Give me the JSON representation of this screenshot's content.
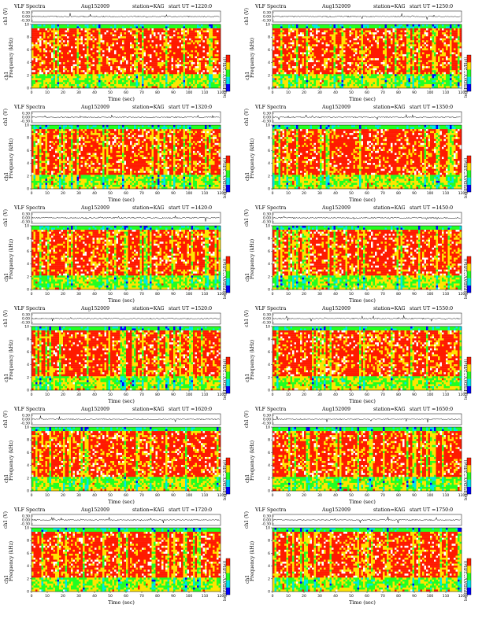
{
  "panel_text": {
    "title": "VLF Spectra",
    "date": "Aug152009",
    "station": "station=KAG",
    "start_label": "start",
    "ut_label": "UT",
    "top_ylabel": "ch1 (V)",
    "spec_ylabel_channel": "ch1",
    "spec_ylabel": "Frequency (kHz)",
    "xlabel": "Time (sec)",
    "colorbar_label": "log(PSD/(V^2/Hz))"
  },
  "colors": {
    "background": "#ffffff",
    "spectrogram_red": "#ff1a00",
    "spectrogram_yellow": "#ffe400",
    "spectrogram_green": "#22ff22",
    "spectrogram_cyan": "#00e6e6",
    "spectrogram_blue": "#0000ff",
    "trace": "#000000"
  },
  "chart_data": [
    {
      "type": "heatmap",
      "start_ut": "=1220:0",
      "title": "VLF Spectra",
      "date": "Aug152009",
      "station": "station=KAG",
      "xlabel": "Time (sec)",
      "ylabel": "Frequency (kHz)",
      "xlim": [
        0,
        120
      ],
      "ylim": [
        0,
        10
      ],
      "xticks": [
        0,
        10,
        20,
        30,
        40,
        50,
        60,
        70,
        80,
        90,
        100,
        110,
        120
      ],
      "yticks": [
        0,
        2,
        4,
        6,
        8,
        10
      ],
      "top_trace": {
        "ylabel": "ch1 (V)",
        "yticks": [
          "0.30",
          "0.00",
          "-0.30"
        ],
        "ylim": [
          -0.3,
          0.3
        ]
      },
      "colorbar": {
        "label": "log(PSD/(V^2/Hz))",
        "colors": [
          "#0000ff",
          "#00e6e6",
          "#22ff22",
          "#ffe400",
          "#ff1a00"
        ]
      },
      "seed": 11
    },
    {
      "type": "heatmap",
      "start_ut": "=1250:0",
      "title": "VLF Spectra",
      "date": "Aug152009",
      "station": "station=KAG",
      "xlabel": "Time (sec)",
      "ylabel": "Frequency (kHz)",
      "xlim": [
        0,
        120
      ],
      "ylim": [
        0,
        10
      ],
      "xticks": [
        0,
        10,
        20,
        30,
        40,
        50,
        60,
        70,
        80,
        90,
        100,
        110,
        120
      ],
      "yticks": [
        0,
        2,
        4,
        6,
        8,
        10
      ],
      "top_trace": {
        "ylabel": "ch1 (V)",
        "yticks": [
          "0.30",
          "0.00",
          "-0.30"
        ],
        "ylim": [
          -0.3,
          0.3
        ]
      },
      "colorbar": {
        "label": "log(PSD/(V^2/Hz))",
        "colors": [
          "#0000ff",
          "#00e6e6",
          "#22ff22",
          "#ffe400",
          "#ff1a00"
        ]
      },
      "seed": 23
    },
    {
      "type": "heatmap",
      "start_ut": "=1320:0",
      "title": "VLF Spectra",
      "date": "Aug152009",
      "station": "station=KAG",
      "xlabel": "Time (sec)",
      "ylabel": "Frequency (kHz)",
      "xlim": [
        0,
        120
      ],
      "ylim": [
        0,
        10
      ],
      "xticks": [
        0,
        10,
        20,
        30,
        40,
        50,
        60,
        70,
        80,
        90,
        100,
        110,
        120
      ],
      "yticks": [
        0,
        2,
        4,
        6,
        8,
        10
      ],
      "top_trace": {
        "ylabel": "ch1 (V)",
        "yticks": [
          "0.30",
          "0.00",
          "-0.30"
        ],
        "ylim": [
          -0.3,
          0.3
        ]
      },
      "colorbar": {
        "label": "log(PSD/(V^2/Hz))",
        "colors": [
          "#0000ff",
          "#00e6e6",
          "#22ff22",
          "#ffe400",
          "#ff1a00"
        ]
      },
      "seed": 37
    },
    {
      "type": "heatmap",
      "start_ut": "=1350:0",
      "title": "VLF Spectra",
      "date": "Aug152009",
      "station": "station=KAG",
      "xlabel": "Time (sec)",
      "ylabel": "Frequency (kHz)",
      "xlim": [
        0,
        120
      ],
      "ylim": [
        0,
        10
      ],
      "xticks": [
        0,
        10,
        20,
        30,
        40,
        50,
        60,
        70,
        80,
        90,
        100,
        110,
        120
      ],
      "yticks": [
        0,
        2,
        4,
        6,
        8,
        10
      ],
      "top_trace": {
        "ylabel": "ch1 (V)",
        "yticks": [
          "0.30",
          "0.00",
          "-0.30"
        ],
        "ylim": [
          -0.3,
          0.3
        ]
      },
      "colorbar": {
        "label": "log(PSD/(V^2/Hz))",
        "colors": [
          "#0000ff",
          "#00e6e6",
          "#22ff22",
          "#ffe400",
          "#ff1a00"
        ]
      },
      "seed": 41
    },
    {
      "type": "heatmap",
      "start_ut": "=1420:0",
      "title": "VLF Spectra",
      "date": "Aug152009",
      "station": "station=KAG",
      "xlabel": "Time (sec)",
      "ylabel": "Frequency (kHz)",
      "xlim": [
        0,
        120
      ],
      "ylim": [
        0,
        10
      ],
      "xticks": [
        0,
        10,
        20,
        30,
        40,
        50,
        60,
        70,
        80,
        90,
        100,
        110,
        120
      ],
      "yticks": [
        0,
        2,
        4,
        6,
        8,
        10
      ],
      "top_trace": {
        "ylabel": "ch1 (V)",
        "yticks": [
          "0.30",
          "0.00",
          "-0.30"
        ],
        "ylim": [
          -0.3,
          0.3
        ]
      },
      "colorbar": {
        "label": "log(PSD/(V^2/Hz))",
        "colors": [
          "#0000ff",
          "#00e6e6",
          "#22ff22",
          "#ffe400",
          "#ff1a00"
        ]
      },
      "seed": 53
    },
    {
      "type": "heatmap",
      "start_ut": "=1450:0",
      "title": "VLF Spectra",
      "date": "Aug152009",
      "station": "station=KAG",
      "xlabel": "Time (sec)",
      "ylabel": "Frequency (kHz)",
      "xlim": [
        0,
        120
      ],
      "ylim": [
        0,
        10
      ],
      "xticks": [
        0,
        10,
        20,
        30,
        40,
        50,
        60,
        70,
        80,
        90,
        100,
        110,
        120
      ],
      "yticks": [
        0,
        2,
        4,
        6,
        8,
        10
      ],
      "top_trace": {
        "ylabel": "ch1 (V)",
        "yticks": [
          "0.30",
          "0.00",
          "-0.30"
        ],
        "ylim": [
          -0.3,
          0.3
        ]
      },
      "colorbar": {
        "label": "log(PSD/(V^2/Hz))",
        "colors": [
          "#0000ff",
          "#00e6e6",
          "#22ff22",
          "#ffe400",
          "#ff1a00"
        ]
      },
      "seed": 67
    },
    {
      "type": "heatmap",
      "start_ut": "=1520:0",
      "title": "VLF Spectra",
      "date": "Aug152009",
      "station": "station=KAG",
      "xlabel": "Time (sec)",
      "ylabel": "Frequency (kHz)",
      "xlim": [
        0,
        120
      ],
      "ylim": [
        0,
        10
      ],
      "xticks": [
        0,
        10,
        20,
        30,
        40,
        50,
        60,
        70,
        80,
        90,
        100,
        110,
        120
      ],
      "yticks": [
        0,
        2,
        4,
        6,
        8,
        10
      ],
      "top_trace": {
        "ylabel": "ch1 (V)",
        "yticks": [
          "0.30",
          "0.00",
          "-0.30"
        ],
        "ylim": [
          -0.3,
          0.3
        ]
      },
      "colorbar": {
        "label": "log(PSD/(V^2/Hz))",
        "colors": [
          "#0000ff",
          "#00e6e6",
          "#22ff22",
          "#ffe400",
          "#ff1a00"
        ]
      },
      "seed": 71
    },
    {
      "type": "heatmap",
      "start_ut": "=1550:0",
      "title": "VLF Spectra",
      "date": "Aug152009",
      "station": "station=KAG",
      "xlabel": "Time (sec)",
      "ylabel": "Frequency (kHz)",
      "xlim": [
        0,
        120
      ],
      "ylim": [
        0,
        10
      ],
      "xticks": [
        0,
        10,
        20,
        30,
        40,
        50,
        60,
        70,
        80,
        90,
        100,
        110,
        120
      ],
      "yticks": [
        0,
        2,
        4,
        6,
        8,
        10
      ],
      "top_trace": {
        "ylabel": "ch1 (V)",
        "yticks": [
          "0.30",
          "0.00",
          "-0.30"
        ],
        "ylim": [
          -0.3,
          0.3
        ]
      },
      "colorbar": {
        "label": "log(PSD/(V^2/Hz))",
        "colors": [
          "#0000ff",
          "#00e6e6",
          "#22ff22",
          "#ffe400",
          "#ff1a00"
        ]
      },
      "seed": 83
    },
    {
      "type": "heatmap",
      "start_ut": "=1620:0",
      "title": "VLF Spectra",
      "date": "Aug152009",
      "station": "station=KAG",
      "xlabel": "Time (sec)",
      "ylabel": "Frequency (kHz)",
      "xlim": [
        0,
        120
      ],
      "ylim": [
        0,
        10
      ],
      "xticks": [
        0,
        10,
        20,
        30,
        40,
        50,
        60,
        70,
        80,
        90,
        100,
        110,
        120
      ],
      "yticks": [
        0,
        2,
        4,
        6,
        8,
        10
      ],
      "top_trace": {
        "ylabel": "ch1 (V)",
        "yticks": [
          "0.30",
          "0.00",
          "-0.30"
        ],
        "ylim": [
          -0.3,
          0.3
        ]
      },
      "colorbar": {
        "label": "log(PSD/(V^2/Hz))",
        "colors": [
          "#0000ff",
          "#00e6e6",
          "#22ff22",
          "#ffe400",
          "#ff1a00"
        ]
      },
      "seed": 97
    },
    {
      "type": "heatmap",
      "start_ut": "=1650:0",
      "title": "VLF Spectra",
      "date": "Aug152009",
      "station": "station=KAG",
      "xlabel": "Time (sec)",
      "ylabel": "Frequency (kHz)",
      "xlim": [
        0,
        120
      ],
      "ylim": [
        0,
        10
      ],
      "xticks": [
        0,
        10,
        20,
        30,
        40,
        50,
        60,
        70,
        80,
        90,
        100,
        110,
        120
      ],
      "yticks": [
        0,
        2,
        4,
        6,
        8,
        10
      ],
      "top_trace": {
        "ylabel": "ch1 (V)",
        "yticks": [
          "0.30",
          "0.00",
          "-0.30"
        ],
        "ylim": [
          -0.3,
          0.3
        ]
      },
      "colorbar": {
        "label": "log(PSD/(V^2/Hz))",
        "colors": [
          "#0000ff",
          "#00e6e6",
          "#22ff22",
          "#ffe400",
          "#ff1a00"
        ]
      },
      "seed": 101
    },
    {
      "type": "heatmap",
      "start_ut": "=1720:0",
      "title": "VLF Spectra",
      "date": "Aug152009",
      "station": "station=KAG",
      "xlabel": "Time (sec)",
      "ylabel": "Frequency (kHz)",
      "xlim": [
        0,
        120
      ],
      "ylim": [
        0,
        10
      ],
      "xticks": [
        0,
        10,
        20,
        30,
        40,
        50,
        60,
        70,
        80,
        90,
        100,
        110,
        120
      ],
      "yticks": [
        0,
        2,
        4,
        6,
        8,
        10
      ],
      "top_trace": {
        "ylabel": "ch1 (V)",
        "yticks": [
          "0.30",
          "0.00",
          "-0.30"
        ],
        "ylim": [
          -0.3,
          0.3
        ]
      },
      "colorbar": {
        "label": "log(PSD/(V^2/Hz))",
        "colors": [
          "#0000ff",
          "#00e6e6",
          "#22ff22",
          "#ffe400",
          "#ff1a00"
        ]
      },
      "seed": 113
    },
    {
      "type": "heatmap",
      "start_ut": "=1750:0",
      "title": "VLF Spectra",
      "date": "Aug152009",
      "station": "station=KAG",
      "xlabel": "Time (sec)",
      "ylabel": "Frequency (kHz)",
      "xlim": [
        0,
        120
      ],
      "ylim": [
        0,
        10
      ],
      "xticks": [
        0,
        10,
        20,
        30,
        40,
        50,
        60,
        70,
        80,
        90,
        100,
        110,
        120
      ],
      "yticks": [
        0,
        2,
        4,
        6,
        8,
        10
      ],
      "top_trace": {
        "ylabel": "ch1 (V)",
        "yticks": [
          "0.30",
          "0.00",
          "-0.30"
        ],
        "ylim": [
          -0.3,
          0.3
        ]
      },
      "colorbar": {
        "label": "log(PSD/(V^2/Hz))",
        "colors": [
          "#0000ff",
          "#00e6e6",
          "#22ff22",
          "#ffe400",
          "#ff1a00"
        ]
      },
      "seed": 127
    }
  ]
}
